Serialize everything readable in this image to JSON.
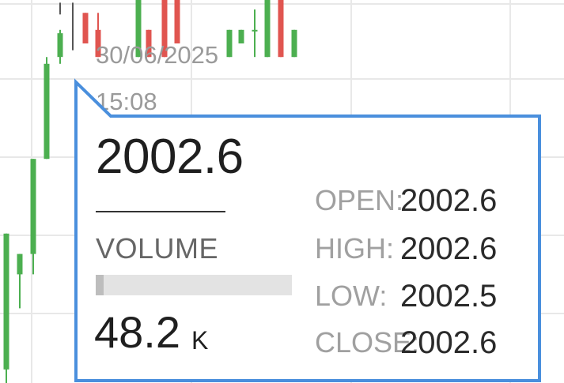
{
  "candles": [
    {
      "open": 20,
      "high": 220,
      "low": 0,
      "close": 220,
      "color": "up"
    },
    {
      "open": 160,
      "high": 190,
      "low": 110,
      "close": 190,
      "color": "up"
    },
    {
      "open": 190,
      "high": 330,
      "low": 160,
      "close": 330,
      "color": "up"
    },
    {
      "open": 330,
      "high": 480,
      "low": 330,
      "close": 470,
      "color": "up"
    },
    {
      "open": 480,
      "high": 520,
      "low": 470,
      "close": 515,
      "color": "up"
    },
    {
      "open": 520,
      "high": 545,
      "low": 490,
      "close": 520,
      "color": "neutral"
    },
    {
      "open": 545,
      "high": 560,
      "low": 545,
      "close": 545,
      "color": "neutral"
    },
    {
      "open": 545,
      "high": 560,
      "low": 520,
      "close": 548,
      "color": "neutral"
    },
    {
      "open": 545,
      "high": 545,
      "low": 500,
      "close": 500,
      "color": "down"
    },
    {
      "open": 520,
      "high": 545,
      "low": 480,
      "close": 480,
      "color": "down"
    },
    {
      "open": 480,
      "high": 620,
      "low": 480,
      "close": 620,
      "color": "up"
    },
    {
      "open": 660,
      "high": 660,
      "low": 480,
      "close": 480,
      "color": "down"
    },
    {
      "open": 600,
      "high": 640,
      "low": 500,
      "close": 500,
      "color": "down"
    },
    {
      "open": 480,
      "high": 520,
      "low": 480,
      "close": 520,
      "color": "up"
    },
    {
      "open": 500,
      "high": 520,
      "low": 500,
      "close": 520,
      "color": "up"
    },
    {
      "open": 520,
      "high": 550,
      "low": 480,
      "close": 520,
      "color": "up"
    },
    {
      "open": 480,
      "high": 590,
      "low": 480,
      "close": 590,
      "color": "up"
    },
    {
      "open": 570,
      "high": 570,
      "low": 480,
      "close": 480,
      "color": "down"
    },
    {
      "open": 520,
      "high": 520,
      "low": 480,
      "close": 480,
      "color": "up"
    },
    {
      "open": 520,
      "high": 520,
      "low": 480,
      "close": 480,
      "color": "down"
    }
  ],
  "colors": {
    "up": "#4caf50",
    "down": "#e05550",
    "neutral": "#555555",
    "tooltip_border": "#4a8fdd",
    "grid": "#e8e8e8"
  },
  "tooltip": {
    "date": "30/06/2025",
    "time": "15:08",
    "price": "2002.6",
    "volume_label": "VOLUME",
    "volume_value": "48.2",
    "volume_unit": "K",
    "volume_fraction": 0.04,
    "ohlc": [
      {
        "label": "OPEN:",
        "value": "2002.6"
      },
      {
        "label": "HIGH:",
        "value": "2002.6"
      },
      {
        "label": "LOW:",
        "value": "2002.5"
      },
      {
        "label": "CLOSE:",
        "value": "2002.6"
      }
    ]
  }
}
